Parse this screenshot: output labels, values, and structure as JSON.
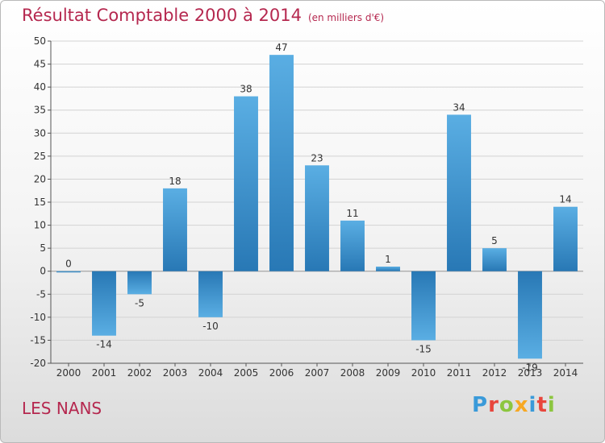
{
  "chart_data": {
    "type": "bar",
    "title": "Résultat Comptable 2000 à 2014",
    "subtitle": "(en milliers d'€)",
    "categories": [
      "2000",
      "2001",
      "2002",
      "2003",
      "2004",
      "2005",
      "2006",
      "2007",
      "2008",
      "2009",
      "2010",
      "2011",
      "2012",
      "2013",
      "2014"
    ],
    "values": [
      0,
      -14,
      -5,
      18,
      -10,
      38,
      47,
      23,
      11,
      1,
      -15,
      34,
      5,
      -19,
      14
    ],
    "ylim": [
      -20,
      50
    ],
    "yticks": [
      50,
      45,
      40,
      35,
      30,
      25,
      20,
      15,
      10,
      5,
      0,
      -5,
      -10,
      -15,
      -20
    ],
    "xlabel": "",
    "ylabel": "",
    "grid": true
  },
  "commune": "LES NANS",
  "logo": {
    "text": "Proxiti",
    "colors": [
      "#3a9ad9",
      "#e8453c",
      "#8cc63f",
      "#f7a823",
      "#3a9ad9",
      "#e8453c",
      "#8cc63f"
    ]
  },
  "colors": {
    "bar_top": "#5aaee3",
    "bar_bottom": "#2878b5",
    "title": "#b5284f"
  }
}
